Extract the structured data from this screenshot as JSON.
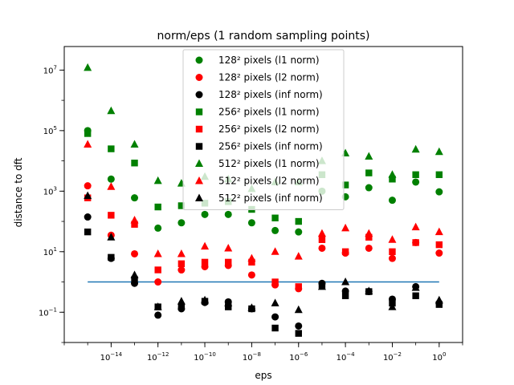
{
  "chart_data": {
    "type": "scatter",
    "title": "norm/eps (1 random sampling points)",
    "xlabel": "eps",
    "ylabel": "distance to dft",
    "xscale": "log",
    "yscale": "log",
    "xlim": [
      1e-16,
      10
    ],
    "ylim": [
      0.01,
      60000000
    ],
    "x_ticks": [
      {
        "value": 1e-14,
        "base": "10",
        "exp": "−14"
      },
      {
        "value": 1e-12,
        "base": "10",
        "exp": "−12"
      },
      {
        "value": 1e-10,
        "base": "10",
        "exp": "−10"
      },
      {
        "value": 1e-08,
        "base": "10",
        "exp": "−8"
      },
      {
        "value": 1e-06,
        "base": "10",
        "exp": "−6"
      },
      {
        "value": 0.0001,
        "base": "10",
        "exp": "−4"
      },
      {
        "value": 0.01,
        "base": "10",
        "exp": "−2"
      },
      {
        "value": 1,
        "base": "10",
        "exp": "0"
      }
    ],
    "y_ticks": [
      {
        "value": 0.1,
        "base": "10",
        "exp": "−1"
      },
      {
        "value": 10,
        "base": "10",
        "exp": "1"
      },
      {
        "value": 1000,
        "base": "10",
        "exp": "3"
      },
      {
        "value": 100000,
        "base": "10",
        "exp": "5"
      },
      {
        "value": 10000000,
        "base": "10",
        "exp": "7"
      }
    ],
    "x": [
      1e-15,
      1e-14,
      1e-13,
      1e-12,
      1e-11,
      1e-10,
      1e-09,
      1e-08,
      1e-07,
      1e-06,
      1e-05,
      0.0001,
      0.001,
      0.01,
      0.1,
      1
    ],
    "reference_line": {
      "x": [
        1e-15,
        1
      ],
      "y": [
        1,
        1
      ],
      "color": "#1f77b4"
    },
    "legend_position": "top-center",
    "series": [
      {
        "name": "128² pixels (l1 norm)",
        "color": "#008000",
        "marker": "circle",
        "values": [
          100000,
          2500,
          600,
          60,
          90,
          170,
          170,
          90,
          50,
          45,
          1000,
          650,
          1300,
          500,
          2000,
          950
        ]
      },
      {
        "name": "128² pixels (l2 norm)",
        "color": "#ff0000",
        "marker": "circle",
        "values": [
          1500,
          35,
          8.5,
          1.0,
          2.5,
          3.2,
          3.5,
          1.7,
          0.8,
          0.6,
          13,
          9,
          13,
          6,
          20,
          9
        ]
      },
      {
        "name": "128² pixels (inf norm)",
        "color": "#000000",
        "marker": "circle",
        "values": [
          140,
          6,
          0.9,
          0.08,
          0.13,
          0.21,
          0.22,
          0.13,
          0.07,
          0.035,
          0.9,
          0.5,
          0.48,
          0.27,
          0.7,
          0.2
        ]
      },
      {
        "name": "256² pixels (l1 norm)",
        "color": "#008000",
        "marker": "square",
        "values": [
          80000,
          25000,
          8500,
          300,
          330,
          400,
          450,
          250,
          130,
          100,
          3500,
          1600,
          4000,
          2500,
          3500,
          3500
        ]
      },
      {
        "name": "256² pixels (l2 norm)",
        "color": "#ff0000",
        "marker": "square",
        "values": [
          600,
          160,
          80,
          2.5,
          4,
          4.5,
          4.5,
          4.5,
          1.0,
          0.7,
          25,
          10,
          30,
          10,
          20,
          17
        ]
      },
      {
        "name": "256² pixels (inf norm)",
        "color": "#000000",
        "marker": "square",
        "values": [
          45,
          6.5,
          1.2,
          0.15,
          0.15,
          0.23,
          0.15,
          0.13,
          0.03,
          0.02,
          0.8,
          0.35,
          0.48,
          0.2,
          0.35,
          0.18
        ]
      },
      {
        "name": "512² pixels (l1 norm)",
        "color": "#008000",
        "marker": "triangle",
        "values": [
          12000000,
          450000,
          35000,
          2200,
          1800,
          3000,
          2500,
          1200,
          2000,
          2000,
          10000,
          18000,
          14000,
          3500,
          24000,
          20000
        ]
      },
      {
        "name": "512² pixels (l2 norm)",
        "color": "#ff0000",
        "marker": "triangle",
        "values": [
          35000,
          1400,
          110,
          8.5,
          8.5,
          15,
          13,
          6,
          10,
          7,
          40,
          60,
          40,
          25,
          65,
          45
        ]
      },
      {
        "name": "512² pixels (inf norm)",
        "color": "#000000",
        "marker": "triangle",
        "values": [
          700,
          30,
          1.7,
          0.15,
          0.23,
          0.25,
          0.2,
          0.14,
          0.2,
          0.12,
          0.7,
          1.0,
          0.5,
          0.15,
          0.65,
          0.25
        ]
      }
    ]
  }
}
